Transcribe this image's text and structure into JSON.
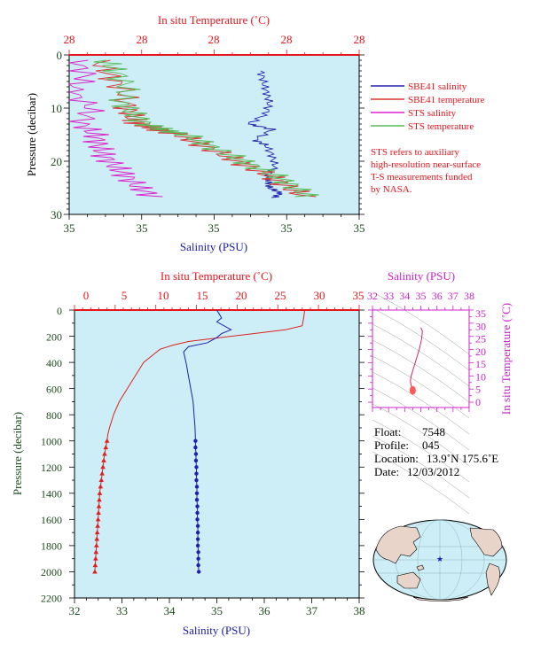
{
  "chart_data": [
    {
      "type": "line",
      "panel": "near-surface",
      "top_axis_title": "In situ Temperature (˚C)",
      "top_ticks": [
        "28",
        "28",
        "28",
        "28",
        "28"
      ],
      "bottom_axis_title": "Salinity (PSU)",
      "bottom_ticks": [
        "35",
        "35",
        "35",
        "35",
        "35"
      ],
      "ylabel": "Pressure (decibar)",
      "yticks": [
        0,
        10,
        20,
        30
      ],
      "ylim": [
        0,
        30
      ],
      "legend_position": "right",
      "series": [
        {
          "name": "SBE41 salinity",
          "color": "#2222aa",
          "x_frac": [
            0.66,
            0.67,
            0.68,
            0.69,
            0.68,
            0.62,
            0.7,
            0.64,
            0.68,
            0.7,
            0.71,
            0.68,
            0.69,
            0.69,
            0.73,
            0.7
          ],
          "pressure": [
            3,
            5,
            7,
            9,
            11,
            13,
            14,
            16,
            17,
            19,
            21,
            23,
            24,
            25,
            26,
            27
          ]
        },
        {
          "name": "SBE41 temperature",
          "color": "#dd3333",
          "x_frac": [
            0.1,
            0.14,
            0.19,
            0.2,
            0.22,
            0.24,
            0.3,
            0.38,
            0.46,
            0.54,
            0.62,
            0.7,
            0.76,
            0.82
          ],
          "pressure": [
            1,
            4,
            7,
            10,
            12,
            13,
            14,
            15,
            17,
            19,
            21,
            23,
            25,
            27
          ]
        },
        {
          "name": "STS salinity",
          "color": "#dd22cc",
          "x_frac": [
            0.02,
            0.06,
            0.0,
            0.08,
            0.04,
            0.09,
            0.1,
            0.12,
            0.16,
            0.2,
            0.24,
            0.3
          ],
          "pressure": [
            1,
            4,
            7,
            10,
            13,
            15,
            17,
            19,
            21,
            23,
            25,
            27
          ]
        },
        {
          "name": "STS temperature",
          "color": "#55bb55",
          "x_frac": [
            0.12,
            0.16,
            0.2,
            0.18,
            0.22,
            0.26,
            0.32,
            0.4,
            0.48,
            0.56,
            0.64,
            0.72,
            0.78,
            0.83
          ],
          "pressure": [
            1,
            3,
            6,
            9,
            11,
            13,
            14,
            15,
            17,
            19,
            21,
            23,
            25,
            27
          ]
        }
      ],
      "annotation": [
        "STS refers to auxiliary",
        "high-resolution near-surface",
        "T-S measurements funded",
        "by NASA."
      ]
    },
    {
      "type": "line",
      "panel": "full-profile",
      "top_axis_title": "In situ Temperature (˚C)",
      "xlim_top": [
        0,
        35
      ],
      "top_ticks": [
        0,
        5,
        10,
        15,
        20,
        25,
        30,
        35
      ],
      "bottom_axis_title": "Salinity (PSU)",
      "xlim_bottom": [
        32,
        38
      ],
      "bottom_ticks": [
        32,
        33,
        34,
        35,
        36,
        37,
        38
      ],
      "ylabel": "Pressure (decibar)",
      "ylim": [
        0,
        2200
      ],
      "yticks": [
        0,
        200,
        400,
        600,
        800,
        1000,
        1200,
        1400,
        1600,
        1800,
        2000,
        2200
      ],
      "series": [
        {
          "role": "temperature",
          "color": "#e02020",
          "x": [
            28.3,
            28.2,
            28.0,
            26.0,
            22.0,
            18.0,
            14.0,
            12.0,
            10.5,
            9.5,
            8.5,
            7.5,
            6.5,
            5.5,
            4.8,
            4.3,
            4.1,
            4.0
          ],
          "pressure": [
            0,
            50,
            120,
            150,
            180,
            210,
            240,
            270,
            300,
            350,
            400,
            500,
            600,
            700,
            800,
            900,
            950,
            1000
          ]
        },
        {
          "role": "temperature_sampled",
          "color": "#e02020",
          "x": [
            4.0,
            3.85,
            3.7,
            3.6,
            3.5,
            3.4,
            3.3,
            3.2,
            3.1,
            3.05,
            3.0,
            2.95,
            2.9,
            2.85,
            2.8,
            2.75,
            2.7,
            2.65,
            2.6,
            2.55,
            2.5
          ],
          "pressure": [
            1000,
            1050,
            1100,
            1150,
            1200,
            1250,
            1300,
            1350,
            1400,
            1450,
            1500,
            1550,
            1600,
            1650,
            1700,
            1750,
            1800,
            1850,
            1900,
            1950,
            2000
          ]
        },
        {
          "role": "salinity",
          "color": "#2020b0",
          "x": [
            35.0,
            35.05,
            35.1,
            35.0,
            35.15,
            35.3,
            35.1,
            35.0,
            34.8,
            34.4,
            34.3,
            34.35,
            34.4,
            34.45,
            34.5,
            34.52,
            34.54,
            34.55
          ],
          "pressure": [
            0,
            30,
            60,
            90,
            120,
            150,
            180,
            210,
            250,
            280,
            320,
            400,
            500,
            600,
            700,
            800,
            900,
            1000
          ]
        },
        {
          "role": "salinity_sampled",
          "color": "#2020b0",
          "x": [
            34.55,
            34.55,
            34.56,
            34.56,
            34.57,
            34.57,
            34.57,
            34.58,
            34.58,
            34.58,
            34.59,
            34.59,
            34.59,
            34.6,
            34.6,
            34.6,
            34.6,
            34.61,
            34.61,
            34.61,
            34.62
          ],
          "pressure": [
            1000,
            1050,
            1100,
            1150,
            1200,
            1250,
            1300,
            1350,
            1400,
            1450,
            1500,
            1550,
            1600,
            1650,
            1700,
            1750,
            1800,
            1850,
            1900,
            1950,
            2000
          ]
        }
      ]
    },
    {
      "type": "scatter",
      "panel": "t-s-diagram",
      "top_axis_title": "Salinity (PSU)",
      "xlim": [
        32,
        38
      ],
      "xticks": [
        32,
        33,
        34,
        35,
        36,
        37,
        38
      ],
      "right_axis_title": "In situ Temperature (˚C)",
      "ylim": [
        -2,
        35
      ],
      "yticks": [
        0,
        5,
        10,
        15,
        20,
        25,
        30,
        35
      ],
      "series": [
        {
          "color": "#dd2266",
          "x": [
            35.0,
            35.1,
            35.05,
            34.9,
            34.7,
            34.5,
            34.4,
            34.35,
            34.4,
            34.45,
            34.5
          ],
          "y": [
            28.3,
            27.0,
            24.0,
            20.0,
            16.0,
            12.0,
            10.0,
            8.0,
            6.5,
            5.0,
            3.5
          ]
        }
      ]
    }
  ],
  "info": {
    "float_label": "Float:",
    "float_value": "7548",
    "profile_label": "Profile:",
    "profile_value": "045",
    "location_label": "Location:",
    "location_value": "13.9˚N  175.6˚E",
    "date_label": "Date:",
    "date_value": "12/03/2012"
  },
  "map": {
    "marker": "★",
    "marker_color": "#1a22c8"
  },
  "colors": {
    "panel_bg": "#cdeef6",
    "accent_red": "#e8141c",
    "accent_magenta": "#cc22cc",
    "axis_green": "#1f4a1f",
    "land": "#e8d4c8"
  }
}
